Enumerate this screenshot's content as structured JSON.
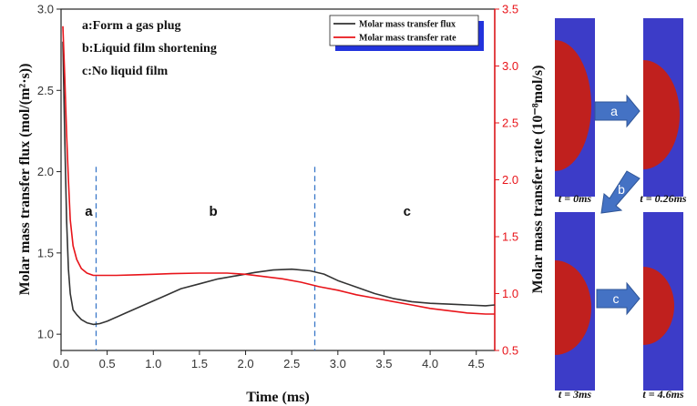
{
  "chart_data": {
    "type": "line",
    "xlabel": "Time (ms)",
    "ylabel_left": "Molar mass transfer flux (mol/(m²·s))",
    "ylabel_right": "Molar mass transfer rate (10⁻⁸mol/s)",
    "xlim": [
      0,
      4.7
    ],
    "ylim_left": [
      0.9,
      3.0
    ],
    "ylim_right": [
      0.5,
      3.5
    ],
    "xticks": [
      "0.0",
      "0.5",
      "1.0",
      "1.5",
      "2.0",
      "2.5",
      "3.0",
      "3.5",
      "4.0",
      "4.5"
    ],
    "yticks_left": [
      "1.0",
      "1.5",
      "2.0",
      "2.5",
      "3.0"
    ],
    "yticks_right": [
      "0.5",
      "1.0",
      "1.5",
      "2.0",
      "2.5",
      "3.0",
      "3.5"
    ],
    "phase_boundaries": [
      0.38,
      2.75
    ],
    "phase_labels": [
      {
        "text": "a",
        "x": 0.3,
        "y": 1.73
      },
      {
        "text": "b",
        "x": 1.65,
        "y": 1.73
      },
      {
        "text": "c",
        "x": 3.75,
        "y": 1.73
      }
    ],
    "annotations": [
      "a:Form a gas plug",
      "b:Liquid film shortening",
      "c:No liquid film"
    ],
    "legend": [
      {
        "name": "Molar mass transfer flux",
        "color": "#333333"
      },
      {
        "name": "Molar mass transfer rate",
        "color": "#e8141a"
      }
    ],
    "series": [
      {
        "name": "Molar mass transfer flux",
        "axis": "left",
        "color": "#333333",
        "x": [
          0.02,
          0.04,
          0.06,
          0.08,
          0.1,
          0.13,
          0.17,
          0.22,
          0.28,
          0.35,
          0.42,
          0.5,
          0.7,
          0.9,
          1.1,
          1.3,
          1.5,
          1.7,
          1.9,
          2.1,
          2.3,
          2.5,
          2.7,
          2.85,
          3.0,
          3.2,
          3.4,
          3.6,
          3.8,
          4.0,
          4.2,
          4.4,
          4.6,
          4.7
        ],
        "values": [
          2.8,
          2.2,
          1.7,
          1.4,
          1.25,
          1.15,
          1.12,
          1.09,
          1.07,
          1.06,
          1.065,
          1.08,
          1.13,
          1.18,
          1.23,
          1.28,
          1.31,
          1.34,
          1.36,
          1.38,
          1.395,
          1.4,
          1.39,
          1.37,
          1.33,
          1.29,
          1.25,
          1.22,
          1.2,
          1.19,
          1.185,
          1.18,
          1.175,
          1.18
        ]
      },
      {
        "name": "Molar mass transfer rate",
        "axis": "right",
        "color": "#e8141a",
        "x": [
          0.02,
          0.04,
          0.06,
          0.08,
          0.1,
          0.13,
          0.17,
          0.22,
          0.28,
          0.35,
          0.45,
          0.6,
          0.8,
          1.0,
          1.2,
          1.5,
          1.8,
          2.0,
          2.2,
          2.4,
          2.6,
          2.8,
          3.0,
          3.2,
          3.4,
          3.6,
          3.8,
          4.0,
          4.2,
          4.4,
          4.6,
          4.7
        ],
        "values": [
          3.35,
          2.9,
          2.4,
          2.0,
          1.65,
          1.42,
          1.3,
          1.22,
          1.18,
          1.16,
          1.16,
          1.16,
          1.165,
          1.17,
          1.175,
          1.18,
          1.18,
          1.17,
          1.15,
          1.13,
          1.1,
          1.06,
          1.03,
          0.99,
          0.96,
          0.93,
          0.9,
          0.87,
          0.85,
          0.83,
          0.82,
          0.82
        ]
      }
    ]
  },
  "snapshots": [
    {
      "label": "t = 0ms"
    },
    {
      "label": "t = 0.26ms"
    },
    {
      "label": "t = 3ms"
    },
    {
      "label": "t = 4.6ms"
    }
  ],
  "transition_arrows": [
    "a",
    "b",
    "c"
  ],
  "colors": {
    "channel": "#3c3cc8",
    "bubble": "#c0201e",
    "arrow": "#4472c4",
    "flux": "#333333",
    "rate": "#e8141a"
  }
}
